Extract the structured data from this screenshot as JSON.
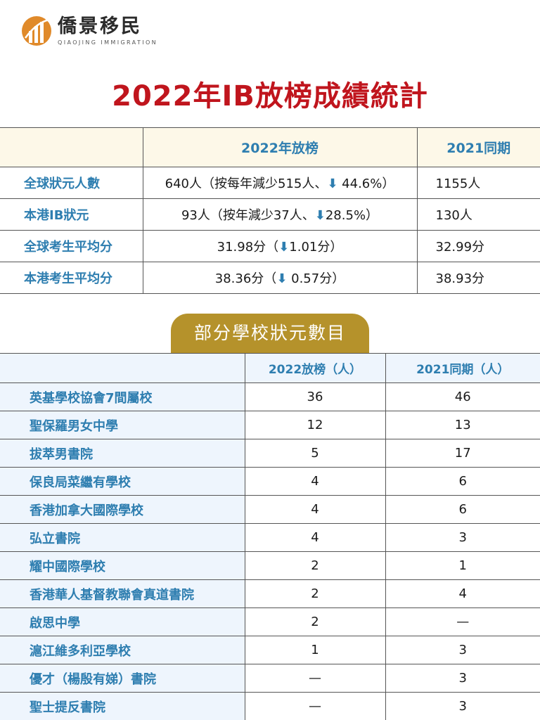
{
  "brand": {
    "name_cn": "僑景移民",
    "name_en": "QIAOJING IMMIGRATION",
    "colors": {
      "mark": "#e08a2a",
      "title": "#c0151d",
      "accent": "#2e7eb0",
      "badge": "#b5922b"
    }
  },
  "title": "2022年IB放榜成績統計",
  "summary_table": {
    "headers": [
      "",
      "2022年放榜",
      "2021同期"
    ],
    "rows": [
      {
        "label": "全球狀元人數",
        "value_2022_prefix": "640人（按每年減少515人、",
        "arrow": "⬇",
        "value_2022_suffix": " 44.6%）",
        "value_2021": "1155人"
      },
      {
        "label": "本港IB狀元",
        "value_2022_prefix": "93人（按年減少37人、",
        "arrow": "⬇",
        "value_2022_suffix": "28.5%）",
        "value_2021": "130人"
      },
      {
        "label": "全球考生平均分",
        "value_2022_prefix": "31.98分（",
        "arrow": "⬇",
        "value_2022_suffix": "1.01分）",
        "value_2021": "32.99分"
      },
      {
        "label": "本港考生平均分",
        "value_2022_prefix": "38.36分（",
        "arrow": "⬇",
        "value_2022_suffix": " 0.57分）",
        "value_2021": "38.93分"
      }
    ]
  },
  "schools_section": {
    "badge": "部分學校狀元數目",
    "headers": [
      "",
      "2022放榜（人）",
      "2021同期（人）"
    ],
    "rows": [
      {
        "school": "英基學校協會7間屬校",
        "y2022": "36",
        "y2021": "46"
      },
      {
        "school": "聖保羅男女中學",
        "y2022": "12",
        "y2021": "13"
      },
      {
        "school": "拔萃男書院",
        "y2022": "5",
        "y2021": "17"
      },
      {
        "school": "保良局菜繼有學校",
        "y2022": "4",
        "y2021": "6"
      },
      {
        "school": "香港加拿大國際學校",
        "y2022": "4",
        "y2021": "6"
      },
      {
        "school": "弘立書院",
        "y2022": "4",
        "y2021": "3"
      },
      {
        "school": "耀中國際學校",
        "y2022": "2",
        "y2021": "1"
      },
      {
        "school": "香港華人基督教聯會真道書院",
        "y2022": "2",
        "y2021": "4"
      },
      {
        "school": "啟思中學",
        "y2022": "2",
        "y2021": "—"
      },
      {
        "school": "滬江維多利亞學校",
        "y2022": "1",
        "y2021": "3"
      },
      {
        "school": "優才（楊殷有娣）書院",
        "y2022": "—",
        "y2021": "3"
      },
      {
        "school": "聖士提反書院",
        "y2022": "—",
        "y2021": "3"
      }
    ]
  }
}
